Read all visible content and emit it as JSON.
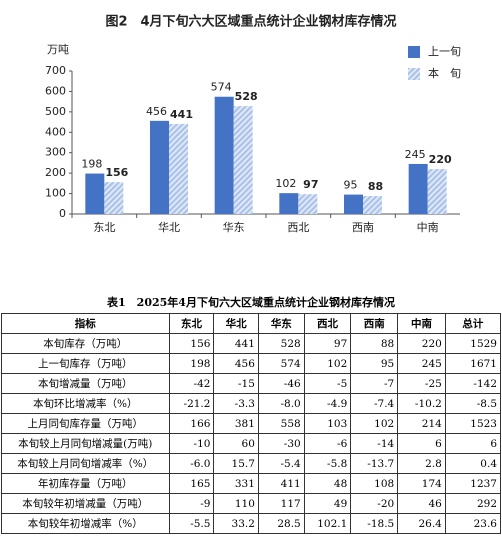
{
  "chart_data": {
    "type": "bar",
    "title": "图2　4月下旬六大区域重点统计企业钢材库存情况",
    "y_label": "万吨",
    "categories": [
      "东北",
      "华北",
      "华东",
      "西北",
      "西南",
      "中南"
    ],
    "series": [
      {
        "name": "上一旬",
        "color": "#4472c4",
        "values": [
          198,
          456,
          574,
          102,
          95,
          245
        ]
      },
      {
        "name": "本　旬",
        "color": "#a9c1e8",
        "pattern": "hatch",
        "values": [
          156,
          441,
          528,
          97,
          88,
          220
        ]
      }
    ],
    "ylim": [
      0,
      700
    ],
    "yticks": [
      0,
      100,
      200,
      300,
      400,
      500,
      600,
      700
    ],
    "legend": "top-right"
  },
  "table": {
    "title": "表1　2025年4月下旬六大区域重点统计企业钢材库存情况",
    "header": [
      "指标",
      "东北",
      "华北",
      "华东",
      "西北",
      "西南",
      "中南",
      "总计"
    ],
    "rows": [
      [
        "本旬库存（万吨）",
        "156",
        "441",
        "528",
        "97",
        "88",
        "220",
        "1529"
      ],
      [
        "上一旬库存（万吨）",
        "198",
        "456",
        "574",
        "102",
        "95",
        "245",
        "1671"
      ],
      [
        "本旬增减量（万吨）",
        "-42",
        "-15",
        "-46",
        "-5",
        "-7",
        "-25",
        "-142"
      ],
      [
        "本旬环比增减率（%）",
        "-21.2",
        "-3.3",
        "-8.0",
        "-4.9",
        "-7.4",
        "-10.2",
        "-8.5"
      ],
      [
        "上月同旬库存量（万吨）",
        "166",
        "381",
        "558",
        "103",
        "102",
        "214",
        "1523"
      ],
      [
        "本旬较上月同旬增减量(万吨)",
        "-10",
        "60",
        "-30",
        "-6",
        "-14",
        "6",
        "6"
      ],
      [
        "本旬较上月同旬增减率（%）",
        "-6.0",
        "15.7",
        "-5.4",
        "-5.8",
        "-13.7",
        "2.8",
        "0.4"
      ],
      [
        "年初库存量（万吨）",
        "165",
        "331",
        "411",
        "48",
        "108",
        "174",
        "1237"
      ],
      [
        "本旬较年初增减量（万吨）",
        "-9",
        "110",
        "117",
        "49",
        "-20",
        "46",
        "292"
      ],
      [
        "本旬较年初增减率（%）",
        "-5.5",
        "33.2",
        "28.5",
        "102.1",
        "-18.5",
        "26.4",
        "23.6"
      ]
    ]
  }
}
